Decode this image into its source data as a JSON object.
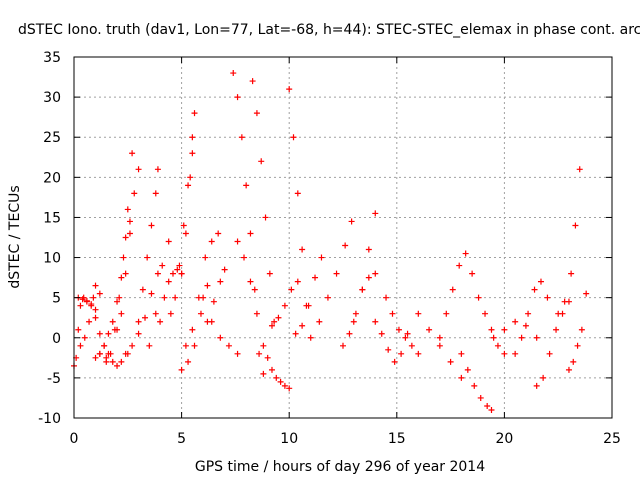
{
  "chart_data": {
    "type": "scatter",
    "title": "dSTEC Iono. truth (dav1, Lon=77, Lat=-68, h=44): STEC-STEC_elemax in phase cont. arc",
    "xlabel": "GPS time / hours of day 296 of year 2014",
    "ylabel": "dSTEC  / TECUs",
    "xlim": [
      0,
      25
    ],
    "ylim": [
      -10,
      35
    ],
    "xticks": [
      0,
      5,
      10,
      15,
      20,
      25
    ],
    "yticks": [
      -10,
      -5,
      0,
      5,
      10,
      15,
      20,
      25,
      30,
      35
    ],
    "xtick_labels": [
      "0",
      "5",
      "10",
      "15",
      "20",
      "25"
    ],
    "ytick_labels": [
      "-10",
      "-5",
      "0",
      "5",
      "10",
      "15",
      "20",
      "25",
      "30",
      "35"
    ],
    "grid": true,
    "marker": "+",
    "color": "#ff0000",
    "series": [
      {
        "x": [
          0.0,
          0.1,
          0.2,
          0.3,
          0.45,
          0.6,
          0.8,
          1.0
        ],
        "y": [
          -3.5,
          -2.5,
          1.0,
          4.0,
          5.0,
          4.6,
          4.2,
          3.5
        ]
      },
      {
        "x": [
          0.2,
          0.4,
          0.6,
          0.8,
          1.0,
          1.2,
          1.4,
          1.6
        ],
        "y": [
          5.0,
          4.8,
          4.5,
          4.0,
          2.5,
          0.5,
          -1.0,
          -2.0
        ]
      },
      {
        "x": [
          0.3,
          0.5,
          0.7,
          0.9,
          1.0,
          1.2
        ],
        "y": [
          -1.0,
          0.0,
          2.0,
          5.0,
          6.5,
          5.5
        ]
      },
      {
        "x": [
          1.0,
          1.2,
          1.4,
          1.6,
          1.8,
          2.0,
          2.2,
          2.4,
          2.6
        ],
        "y": [
          -2.5,
          -2.0,
          -1.0,
          0.5,
          2.0,
          4.5,
          7.5,
          12.5,
          14.5
        ]
      },
      {
        "x": [
          1.5,
          1.7,
          1.9,
          2.1,
          2.3,
          2.5,
          2.7
        ],
        "y": [
          -3.0,
          -2.0,
          1.0,
          5.0,
          10.0,
          16.0,
          23.0
        ]
      },
      {
        "x": [
          1.2,
          1.5,
          1.8,
          2.0,
          2.2,
          2.5
        ],
        "y": [
          -2.0,
          -2.5,
          -3.0,
          -3.5,
          -3.0,
          -2.0
        ]
      },
      {
        "x": [
          2.0,
          2.2,
          2.4,
          2.6,
          2.8,
          3.0
        ],
        "y": [
          1.0,
          3.0,
          8.0,
          13.0,
          18.0,
          21.0
        ]
      },
      {
        "x": [
          2.4,
          2.7,
          3.0,
          3.3,
          3.6,
          3.9
        ],
        "y": [
          -2.0,
          -1.0,
          0.5,
          2.5,
          5.5,
          8.0
        ]
      },
      {
        "x": [
          3.0,
          3.2,
          3.4,
          3.6,
          3.8,
          3.9
        ],
        "y": [
          2.0,
          6.0,
          10.0,
          14.0,
          18.0,
          21.0
        ]
      },
      {
        "x": [
          3.5,
          3.8,
          4.1,
          4.4
        ],
        "y": [
          -1.0,
          3.0,
          9.0,
          12.0
        ]
      },
      {
        "x": [
          4.0,
          4.2,
          4.4,
          4.6,
          4.8,
          5.0
        ],
        "y": [
          2.0,
          5.0,
          7.0,
          8.0,
          8.5,
          8.0
        ]
      },
      {
        "x": [
          4.5,
          4.7,
          4.9,
          5.1,
          5.3,
          5.5
        ],
        "y": [
          3.0,
          5.0,
          9.0,
          14.0,
          19.0,
          23.0
        ]
      },
      {
        "x": [
          5.0,
          5.2,
          5.4,
          5.5,
          5.6
        ],
        "y": [
          8.0,
          13.0,
          20.0,
          25.0,
          28.0
        ]
      },
      {
        "x": [
          5.2,
          5.5,
          5.8,
          6.1,
          6.4,
          6.7
        ],
        "y": [
          -1.0,
          1.0,
          5.0,
          10.0,
          12.0,
          13.0
        ]
      },
      {
        "x": [
          5.0,
          5.3,
          5.6,
          5.9,
          6.2
        ],
        "y": [
          -4.0,
          -3.0,
          -1.0,
          3.0,
          6.5
        ]
      },
      {
        "x": [
          6.0,
          6.4,
          6.8,
          7.2,
          7.6
        ],
        "y": [
          5.0,
          2.0,
          0.0,
          -1.0,
          -2.0
        ]
      },
      {
        "x": [
          6.2,
          6.5,
          6.8,
          7.0
        ],
        "y": [
          2.0,
          4.5,
          7.0,
          8.5
        ]
      },
      {
        "x": [
          7.4,
          7.6,
          7.8,
          8.0,
          8.2,
          8.4,
          8.6
        ],
        "y": [
          33.0,
          30.0,
          25.0,
          19.0,
          13.0,
          6.0,
          -2.0
        ]
      },
      {
        "x": [
          7.6,
          7.9,
          8.2,
          8.5,
          8.8
        ],
        "y": [
          12.0,
          10.0,
          7.0,
          3.0,
          -4.5
        ]
      },
      {
        "x": [
          8.3,
          8.5,
          8.7,
          8.9,
          9.1,
          9.3
        ],
        "y": [
          32.0,
          28.0,
          22.0,
          15.0,
          8.0,
          2.0
        ]
      },
      {
        "x": [
          8.8,
          9.0,
          9.2,
          9.4,
          9.6,
          9.8,
          10.0
        ],
        "y": [
          -1.0,
          -2.5,
          -4.0,
          -5.0,
          -5.5,
          -6.0,
          -6.3
        ]
      },
      {
        "x": [
          9.2,
          9.5,
          9.8,
          10.1,
          10.4
        ],
        "y": [
          1.5,
          2.5,
          4.0,
          6.0,
          7.0
        ]
      },
      {
        "x": [
          10.0,
          10.2,
          10.4,
          10.6,
          10.8
        ],
        "y": [
          31.0,
          25.0,
          18.0,
          11.0,
          4.0
        ]
      },
      {
        "x": [
          10.3,
          10.6,
          10.9,
          11.2,
          11.5
        ],
        "y": [
          0.5,
          1.5,
          4.0,
          7.5,
          10.0
        ]
      },
      {
        "x": [
          11.0,
          11.4,
          11.8,
          12.2,
          12.6,
          12.9
        ],
        "y": [
          0.0,
          2.0,
          5.0,
          8.0,
          11.5,
          14.5
        ]
      },
      {
        "x": [
          12.5,
          12.8,
          13.1,
          13.4,
          13.7,
          14.0
        ],
        "y": [
          -1.0,
          0.5,
          3.0,
          6.0,
          7.5,
          8.0
        ]
      },
      {
        "x": [
          13.0,
          13.4,
          13.7,
          14.0
        ],
        "y": [
          2.0,
          6.0,
          11.0,
          15.5
        ]
      },
      {
        "x": [
          14.0,
          14.3,
          14.6,
          14.9,
          15.2,
          15.5
        ],
        "y": [
          2.0,
          0.5,
          -1.5,
          -3.0,
          -2.0,
          0.5
        ]
      },
      {
        "x": [
          14.5,
          14.8,
          15.1,
          15.4,
          15.7,
          16.0
        ],
        "y": [
          5.0,
          3.0,
          1.0,
          0.0,
          -1.0,
          -2.0
        ]
      },
      {
        "x": [
          16.0,
          16.5,
          17.0,
          17.5,
          18.0
        ],
        "y": [
          3.0,
          1.0,
          -1.0,
          -3.0,
          -5.0
        ]
      },
      {
        "x": [
          17.0,
          17.3,
          17.6,
          17.9,
          18.2,
          18.5
        ],
        "y": [
          0.0,
          3.0,
          6.0,
          9.0,
          10.5,
          8.0
        ]
      },
      {
        "x": [
          18.0,
          18.3,
          18.6,
          18.9,
          19.2,
          19.4
        ],
        "y": [
          -2.0,
          -4.0,
          -6.0,
          -7.5,
          -8.5,
          -9.0
        ]
      },
      {
        "x": [
          18.8,
          19.1,
          19.4,
          19.7,
          20.0
        ],
        "y": [
          5.0,
          3.0,
          1.0,
          -1.0,
          -2.0
        ]
      },
      {
        "x": [
          19.5,
          20.0,
          20.5,
          21.0,
          21.5
        ],
        "y": [
          0.0,
          1.0,
          2.0,
          1.5,
          0.0
        ]
      },
      {
        "x": [
          20.5,
          20.8,
          21.1,
          21.4,
          21.7,
          22.0
        ],
        "y": [
          -2.0,
          0.0,
          3.0,
          6.0,
          7.0,
          5.0
        ]
      },
      {
        "x": [
          21.5,
          21.8,
          22.1,
          22.4,
          22.7,
          23.0
        ],
        "y": [
          -6.0,
          -5.0,
          -2.0,
          1.0,
          3.0,
          4.5
        ]
      },
      {
        "x": [
          22.5,
          22.8,
          23.1,
          23.3,
          23.5
        ],
        "y": [
          3.0,
          4.5,
          8.0,
          14.0,
          21.0
        ]
      },
      {
        "x": [
          23.0,
          23.2,
          23.4,
          23.6,
          23.8
        ],
        "y": [
          -4.0,
          -3.0,
          -1.0,
          1.0,
          5.5
        ]
      }
    ]
  }
}
